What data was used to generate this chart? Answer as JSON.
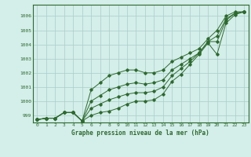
{
  "title": "Graphe pression niveau de la mer (hPa)",
  "background_color": "#d4eeea",
  "grid_color": "#a8cec8",
  "line_color": "#2d6a2d",
  "marker_color": "#2d6a2d",
  "x_ticks": [
    0,
    1,
    2,
    3,
    4,
    5,
    6,
    7,
    8,
    9,
    10,
    11,
    12,
    13,
    14,
    15,
    16,
    17,
    18,
    19,
    20,
    21,
    22,
    23
  ],
  "ylim": [
    998.5,
    1006.8
  ],
  "y_ticks": [
    999,
    1000,
    1001,
    1002,
    1003,
    1004,
    1005,
    1006
  ],
  "line1": [
    998.7,
    998.8,
    998.8,
    999.2,
    999.2,
    998.6,
    999.0,
    999.2,
    999.3,
    999.5,
    999.8,
    1000.0,
    1000.0,
    1000.1,
    1000.5,
    1001.4,
    1001.9,
    1002.6,
    1003.3,
    1004.1,
    1003.3,
    1005.5,
    1006.1,
    1006.3
  ],
  "line2": [
    998.7,
    998.8,
    998.8,
    999.2,
    999.2,
    998.6,
    999.5,
    999.8,
    1000.1,
    1000.3,
    1000.5,
    1000.6,
    1000.6,
    1000.7,
    1001.0,
    1001.8,
    1002.3,
    1002.8,
    1003.4,
    1004.2,
    1004.2,
    1005.7,
    1006.2,
    1006.3
  ],
  "line3": [
    998.7,
    998.8,
    998.8,
    999.2,
    999.2,
    998.6,
    1000.0,
    1000.4,
    1000.8,
    1001.0,
    1001.2,
    1001.3,
    1001.2,
    1001.3,
    1001.5,
    1002.2,
    1002.6,
    1003.0,
    1003.4,
    1004.2,
    1004.6,
    1005.8,
    1006.2,
    1006.3
  ],
  "line4": [
    998.7,
    998.8,
    998.8,
    999.2,
    999.2,
    998.6,
    1000.8,
    1001.3,
    1001.8,
    1002.0,
    1002.2,
    1002.2,
    1002.0,
    1002.0,
    1002.2,
    1002.8,
    1003.1,
    1003.4,
    1003.7,
    1004.4,
    1005.0,
    1006.0,
    1006.3,
    1006.3
  ]
}
